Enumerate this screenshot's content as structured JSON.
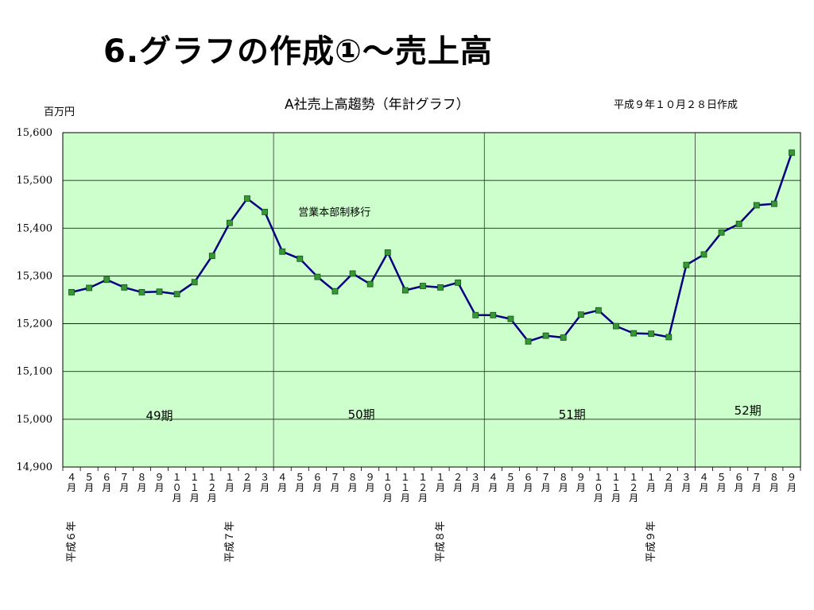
{
  "slide": {
    "title": "6.グラフの作成①～売上高"
  },
  "chart_data": {
    "type": "line",
    "title": "A社売上高趨勢（年計グラフ）",
    "date_note": "平成９年１０月２８日作成",
    "ylabel": "百万円",
    "ylim": [
      14900,
      15600
    ],
    "yticks": [
      14900,
      15000,
      15100,
      15200,
      15300,
      15400,
      15500,
      15600
    ],
    "ytick_labels": [
      "14,900",
      "15,000",
      "15,100",
      "15,200",
      "15,300",
      "15,400",
      "15,500",
      "15,600"
    ],
    "grid": true,
    "plot_background": "#ccffcc",
    "line_color": "#000080",
    "marker_color": "#339933",
    "categories": [
      "４月",
      "５月",
      "６月",
      "７月",
      "８月",
      "９月",
      "１０月",
      "１１月",
      "１２月",
      "１月",
      "２月",
      "３月",
      "４月",
      "５月",
      "６月",
      "７月",
      "８月",
      "９月",
      "１０月",
      "１１月",
      "１２月",
      "１月",
      "２月",
      "３月",
      "４月",
      "５月",
      "６月",
      "７月",
      "８月",
      "９月",
      "１０月",
      "１１月",
      "１２月",
      "１月",
      "２月",
      "３月",
      "４月",
      "５月",
      "６月",
      "７月",
      "８月",
      "９月"
    ],
    "values": [
      15266,
      15275,
      15292,
      15276,
      15266,
      15267,
      15262,
      15287,
      15342,
      15411,
      15462,
      15434,
      15351,
      15336,
      15298,
      15268,
      15305,
      15283,
      15349,
      15270,
      15279,
      15276,
      15286,
      15218,
      15218,
      15210,
      15163,
      15175,
      15171,
      15219,
      15228,
      15195,
      15180,
      15179,
      15172,
      15323,
      15345,
      15391,
      15409,
      15448,
      15451,
      15558
    ],
    "year_labels": [
      {
        "label": "平成６年",
        "index": 0
      },
      {
        "label": "平成７年",
        "index": 9
      },
      {
        "label": "平成８年",
        "index": 21
      },
      {
        "label": "平成９年",
        "index": 33
      }
    ],
    "period_dividers": [
      11.5,
      23.5,
      35.5
    ],
    "periods": [
      {
        "label": "49期",
        "center_index": 5,
        "value": 15007
      },
      {
        "label": "50期",
        "center_index": 16.5,
        "value": 15010
      },
      {
        "label": "51期",
        "center_index": 28.5,
        "value": 15010
      },
      {
        "label": "52期",
        "center_index": 38.5,
        "value": 15018
      }
    ],
    "annotations": [
      {
        "text": "営業本部制移行",
        "index": 12,
        "value": 15426
      }
    ]
  }
}
